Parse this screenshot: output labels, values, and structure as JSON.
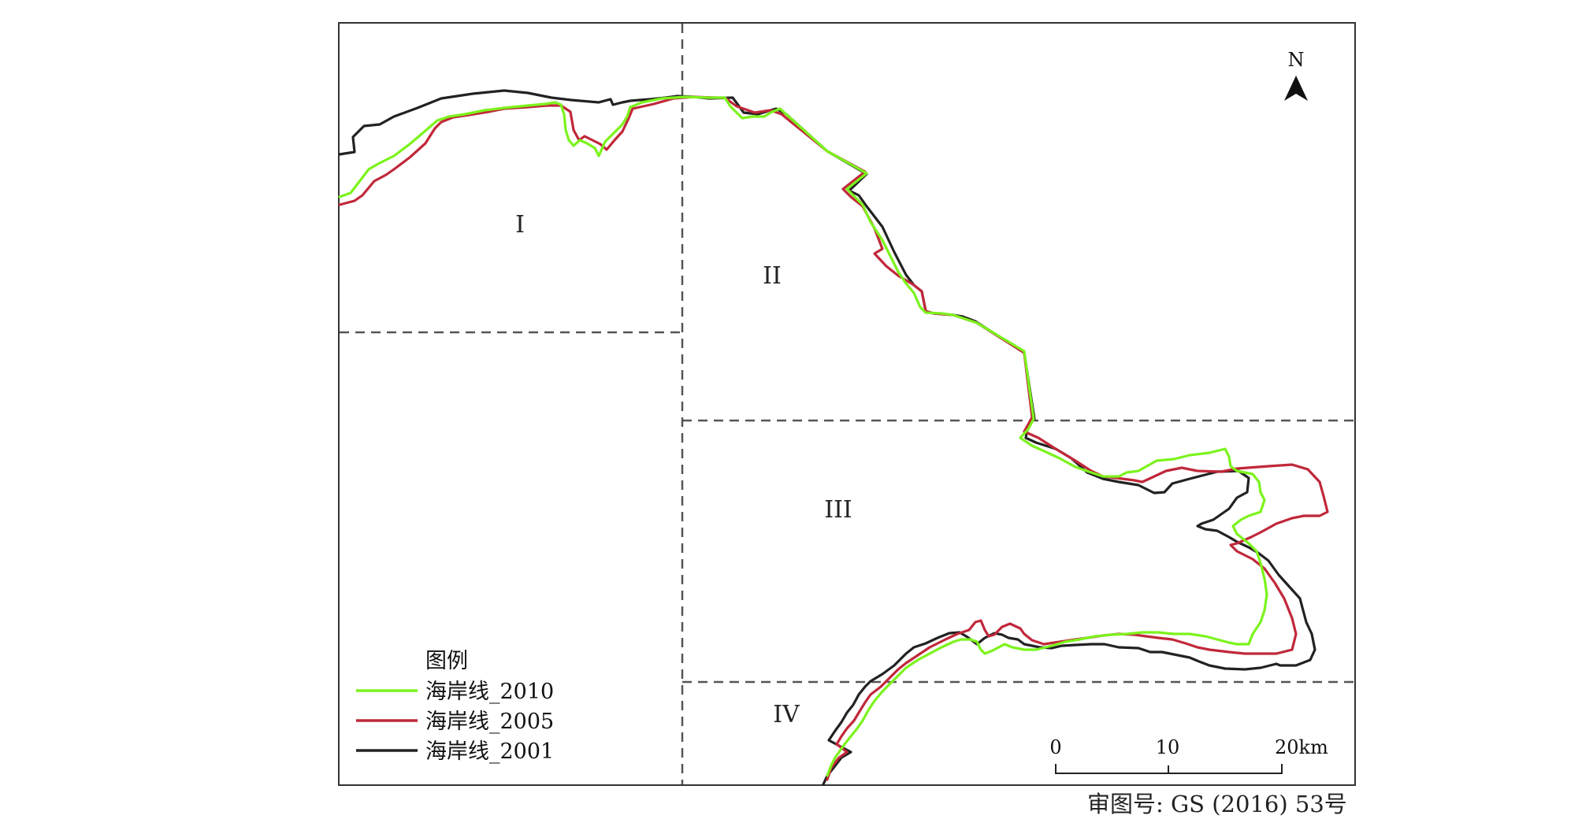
{
  "regions": [
    {
      "id": "I",
      "label": "I"
    },
    {
      "id": "II",
      "label": "II"
    },
    {
      "id": "III",
      "label": "III"
    },
    {
      "id": "IV",
      "label": "IV"
    }
  ],
  "north_arrow": {
    "label": "N",
    "icon": "north-arrow-icon"
  },
  "legend": {
    "title": "图例",
    "items": [
      {
        "label": "海岸线_2010",
        "color": "#7cf31c"
      },
      {
        "label": "海岸线_2005",
        "color": "#c0283a"
      },
      {
        "label": "海岸线_2001",
        "color": "#222222"
      }
    ]
  },
  "scale_bar": {
    "ticks": [
      "0",
      "10",
      "20km"
    ]
  },
  "approval_number": "审图号: GS (2016) 53号"
}
